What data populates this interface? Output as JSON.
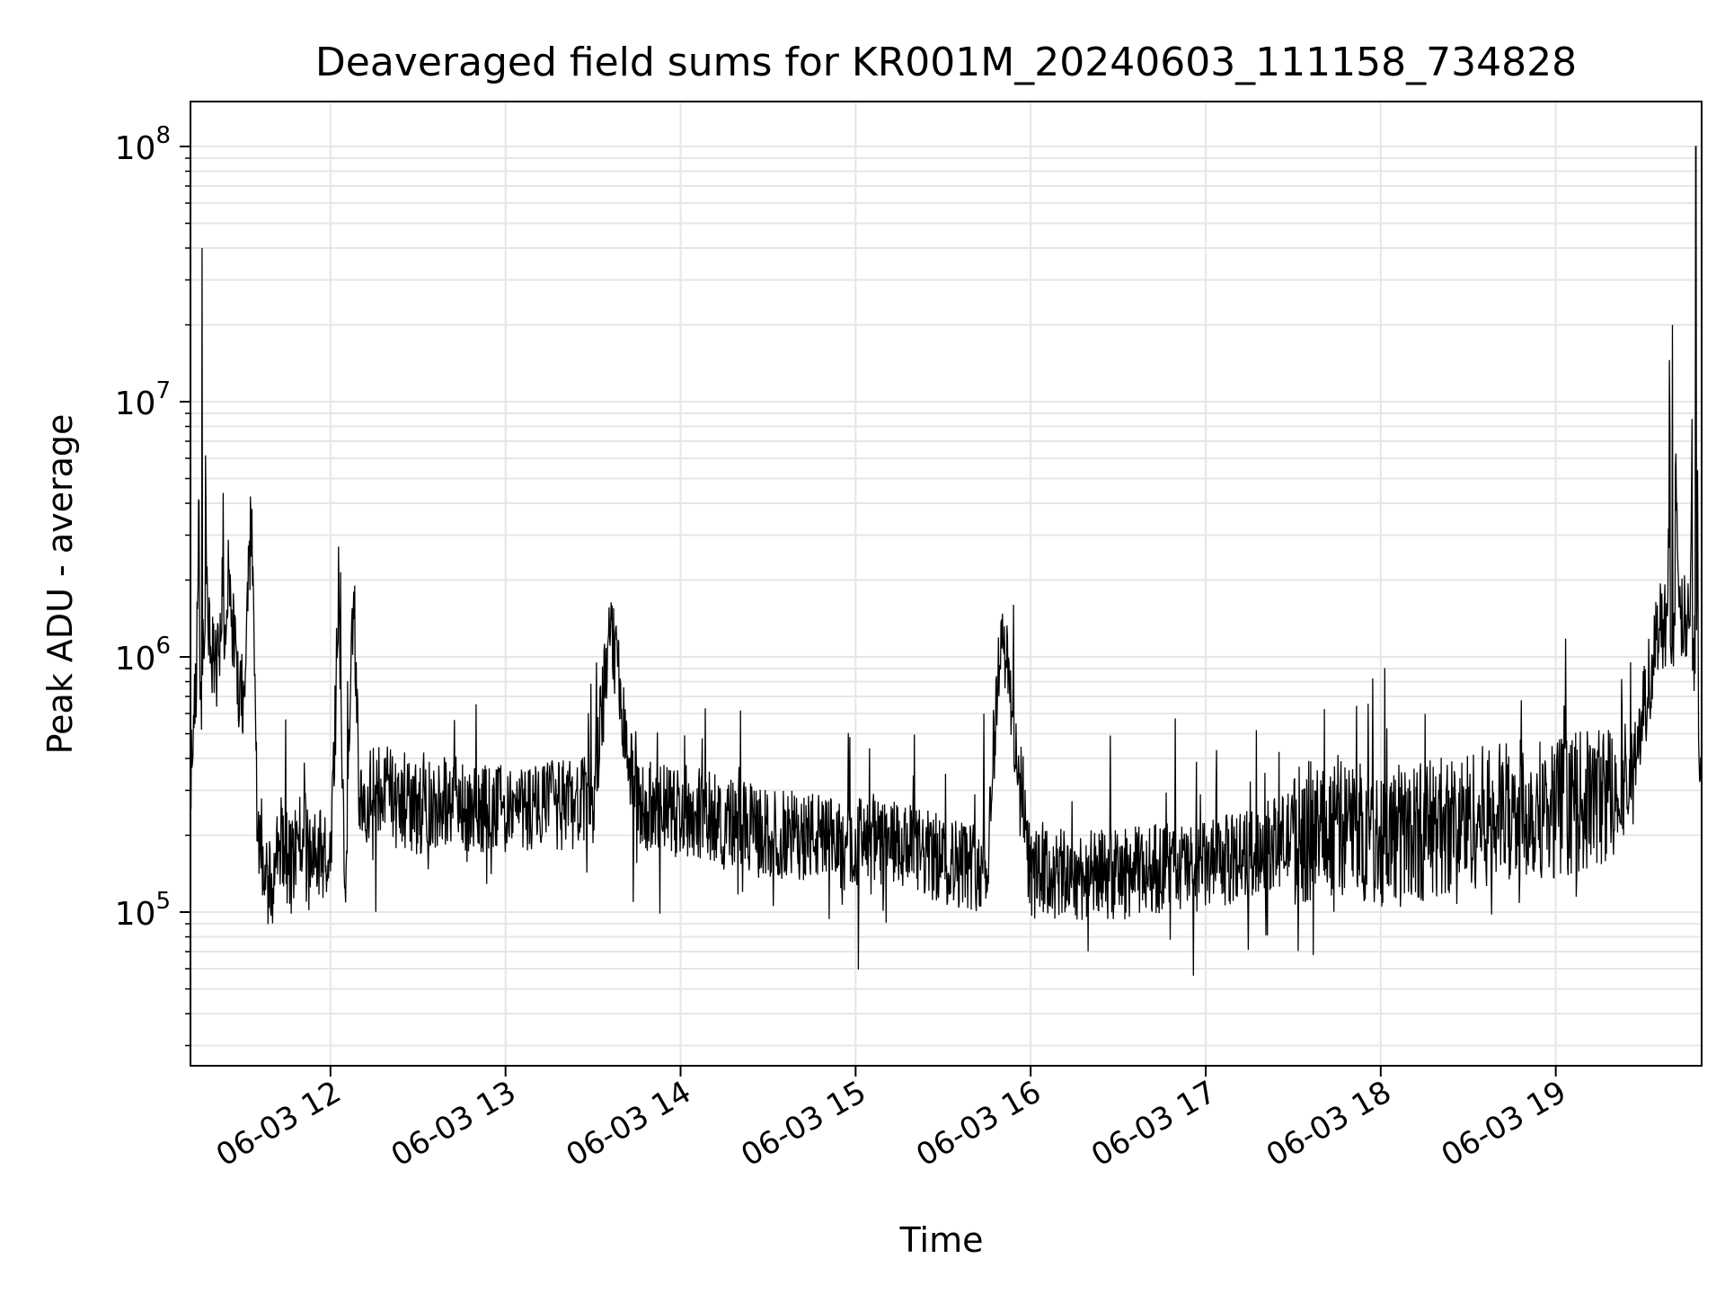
{
  "chart_data": {
    "type": "line",
    "title": "Deaveraged field sums for KR001M_20240603_111158_734828",
    "xlabel": "Time",
    "ylabel": "Peak ADU - average",
    "yscale": "log",
    "ylim": [
      25000,
      150000000
    ],
    "xlim": [
      "2024-06-03 11:12",
      "2024-06-03 19:50"
    ],
    "grid": true,
    "line_color": "#000000",
    "grid_color": "#e6e6e6",
    "x_ticks": [
      {
        "value": "2024-06-03 12:00",
        "label": "06-03 12"
      },
      {
        "value": "2024-06-03 13:00",
        "label": "06-03 13"
      },
      {
        "value": "2024-06-03 14:00",
        "label": "06-03 14"
      },
      {
        "value": "2024-06-03 15:00",
        "label": "06-03 15"
      },
      {
        "value": "2024-06-03 16:00",
        "label": "06-03 16"
      },
      {
        "value": "2024-06-03 17:00",
        "label": "06-03 17"
      },
      {
        "value": "2024-06-03 18:00",
        "label": "06-03 18"
      },
      {
        "value": "2024-06-03 19:00",
        "label": "06-03 19"
      }
    ],
    "y_ticks": [
      {
        "value": 100000,
        "label": "10",
        "exp": "5"
      },
      {
        "value": 1000000,
        "label": "10",
        "exp": "6"
      },
      {
        "value": 10000000,
        "label": "10",
        "exp": "7"
      },
      {
        "value": 100000000,
        "label": "10",
        "exp": "8"
      }
    ],
    "series": [
      {
        "name": "",
        "x": [
          "2024-06-03 11:12",
          "2024-06-03 11:14",
          "2024-06-03 11:16",
          "2024-06-03 11:18",
          "2024-06-03 11:20",
          "2024-06-03 11:22",
          "2024-06-03 11:25",
          "2024-06-03 11:28",
          "2024-06-03 11:30",
          "2024-06-03 11:33",
          "2024-06-03 11:35",
          "2024-06-03 11:37",
          "2024-06-03 11:40",
          "2024-06-03 11:43",
          "2024-06-03 11:46",
          "2024-06-03 11:50",
          "2024-06-03 11:55",
          "2024-06-03 12:00",
          "2024-06-03 12:03",
          "2024-06-03 12:05",
          "2024-06-03 12:08",
          "2024-06-03 12:10",
          "2024-06-03 12:15",
          "2024-06-03 12:20",
          "2024-06-03 12:30",
          "2024-06-03 12:40",
          "2024-06-03 12:50",
          "2024-06-03 13:00",
          "2024-06-03 13:15",
          "2024-06-03 13:30",
          "2024-06-03 13:36",
          "2024-06-03 13:45",
          "2024-06-03 14:00",
          "2024-06-03 14:15",
          "2024-06-03 14:30",
          "2024-06-03 14:45",
          "2024-06-03 14:55",
          "2024-06-03 15:00",
          "2024-06-03 15:15",
          "2024-06-03 15:30",
          "2024-06-03 15:45",
          "2024-06-03 15:50",
          "2024-06-03 16:00",
          "2024-06-03 16:15",
          "2024-06-03 16:30",
          "2024-06-03 16:45",
          "2024-06-03 17:00",
          "2024-06-03 17:15",
          "2024-06-03 17:30",
          "2024-06-03 17:45",
          "2024-06-03 18:00",
          "2024-06-03 18:15",
          "2024-06-03 18:30",
          "2024-06-03 18:45",
          "2024-06-03 19:00",
          "2024-06-03 19:10",
          "2024-06-03 19:20",
          "2024-06-03 19:25",
          "2024-06-03 19:30",
          "2024-06-03 19:35",
          "2024-06-03 19:38",
          "2024-06-03 19:40",
          "2024-06-03 19:42",
          "2024-06-03 19:44",
          "2024-06-03 19:46",
          "2024-06-03 19:48",
          "2024-06-03 19:49",
          "2024-06-03 19:50"
        ],
        "y": [
          300000,
          900000,
          40000000,
          1200000,
          900000,
          1000000,
          2000000,
          800000,
          700000,
          3800000,
          200000,
          150000,
          120000,
          200000,
          150000,
          200000,
          180000,
          150000,
          1600000,
          120000,
          1800000,
          250000,
          300000,
          300000,
          250000,
          280000,
          250000,
          250000,
          260000,
          270000,
          1300000,
          260000,
          250000,
          230000,
          200000,
          200000,
          180000,
          190000,
          180000,
          160000,
          150000,
          1400000,
          140000,
          140000,
          140000,
          150000,
          150000,
          170000,
          200000,
          220000,
          200000,
          210000,
          230000,
          250000,
          260000,
          270000,
          300000,
          300000,
          600000,
          1300000,
          1400000,
          20000000,
          1500000,
          1400000,
          1300000,
          100000000,
          500000,
          400000
        ]
      }
    ],
    "noise_seed": 20240603
  }
}
